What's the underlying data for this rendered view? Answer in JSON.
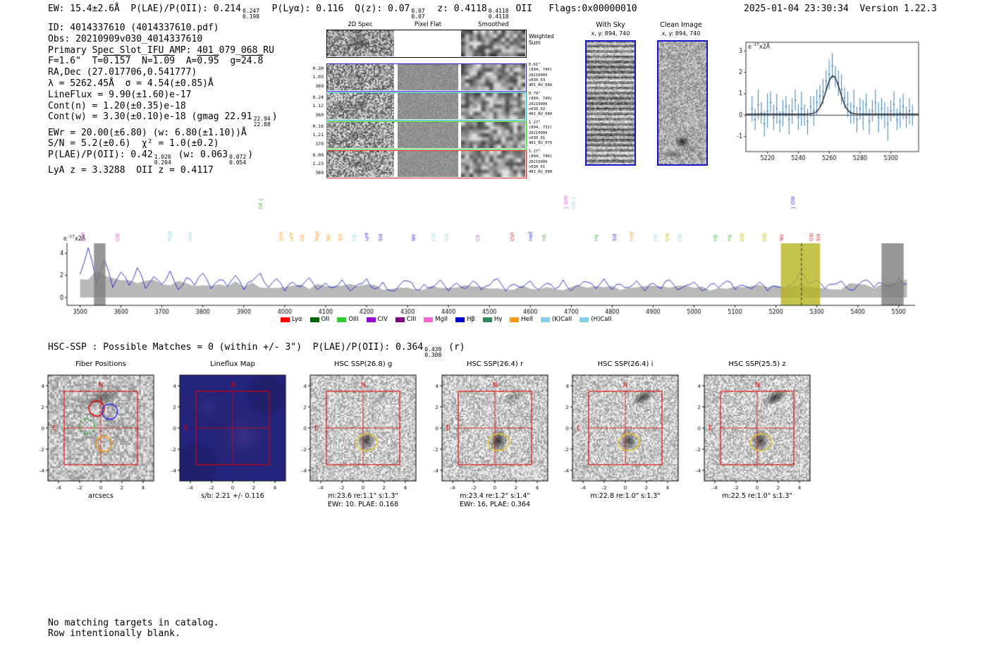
{
  "colors": {
    "frame_blue": "#1515c8",
    "annotate_red": "#dd0000",
    "yellow_band": "#b5b520",
    "gray_fill": "#b9b9b9",
    "spectrum_line": "#2222cc",
    "point_blue": "#3a7ebf",
    "fiber_red": "#dd0000",
    "fiber_blue": "#2222dd",
    "fiber_green": "#22aa22",
    "fiber_orange": "#ff9913",
    "source_ellipse": "#e8c832",
    "map_blue": "#24247e"
  },
  "header": {
    "segments": [
      {
        "t": "EW: 15.4±2.6Å  P(LAE)/P(OII): 0.214"
      },
      {
        "up": "0.247",
        "dn": "0.198"
      },
      {
        "t": "  P(Lyα): 0.116  Q(z): 0.07"
      },
      {
        "up": "0.07",
        "dn": "0.07"
      },
      {
        "t": "  z: 0.4118"
      },
      {
        "up": "0.4118",
        "dn": "0.4118"
      },
      {
        "t": " OII   Flags:0x00000010"
      }
    ],
    "timestamp": "2025-01-04 23:30:34  Version 1.22.3"
  },
  "info": {
    "lines": [
      [
        {
          "t": "ID: 4014337610 (4014337610.pdf)"
        }
      ],
      [
        {
          "t": "Obs: 20210909v030_4014337610"
        }
      ],
      [
        {
          "t": "Primary Spec_Slot_IFU_AMP: 401_079_068_RU"
        }
      ],
      [
        {
          "t": "F=1.6\"  T="
        },
        {
          "t": "0.157",
          "ov": 1
        },
        {
          "t": "  N="
        },
        {
          "t": "1.09",
          "ov": 1
        },
        {
          "t": "  A="
        },
        {
          "t": "0.95",
          "ov": 1
        },
        {
          "t": "  g="
        },
        {
          "t": "24.8",
          "ov": 1
        }
      ],
      [
        {
          "t": "RA,Dec (27.017706,0.541777)"
        }
      ],
      [
        {
          "t": "λ = 5262.45Å  σ = 4.54(±0.85)Å"
        }
      ],
      [
        {
          "t": "LineFlux = 9.90(±1.60)e-17"
        }
      ],
      [
        {
          "t": "Cont(n) = 1.20(±0.35)e-18"
        }
      ],
      [
        {
          "t": "Cont(w) = 3.30(±0.10)e-18 (gmag 22.91"
        },
        {
          "up": "22.94",
          "dn": "22.88"
        },
        {
          "t": ")"
        }
      ],
      [
        {
          "t": "EWr = 20.00(±6.80) (w: 6.80(±1.10))Å"
        }
      ],
      [
        {
          "t": "S/N = 5.2(±0.6)  χ² = 1.0(±0.2)"
        }
      ],
      [
        {
          "t": "P(LAE)/P(OII): 0.42"
        },
        {
          "up": "1.026",
          "dn": "0.204"
        },
        {
          "t": " (w: 0.063"
        },
        {
          "up": "0.072",
          "dn": "0.054"
        },
        {
          "t": ")"
        }
      ],
      [
        {
          "t": "LyA z = 3.3288  OII z = 0.4117"
        }
      ]
    ]
  },
  "spec2d": {
    "col_titles": [
      "2D Spec",
      "Pixel Flat",
      "Smoothed"
    ],
    "sum_right_label": [
      "Weighted",
      "Sum"
    ],
    "rows": [
      {
        "color": "#2020c8",
        "left": [
          "0.30",
          "1.03",
          "369"
        ],
        "right": [
          "0.61\"",
          "(894, 740)",
          "20210909",
          "v030_03",
          "401_RU_080"
        ]
      },
      {
        "color": "#20a8a8",
        "left": [
          "0.24",
          "1.12",
          "369"
        ],
        "right": [
          "0.79\"",
          "(894, 740)",
          "20210909",
          "v030_02",
          "401_RU_080"
        ]
      },
      {
        "color": "#28c828",
        "left": [
          "0.16",
          "1.21",
          "370"
        ],
        "right": [
          "1.27\"",
          "(894, 731)",
          "20210909",
          "v030_01",
          "401_RU_079"
        ]
      },
      {
        "color": "#e02020",
        "left": [
          "0.09",
          "1.23",
          "369"
        ],
        "right": [
          "1.27\"",
          "(894, 740)",
          "20210909",
          "v030_01",
          "401_RU_080"
        ]
      }
    ]
  },
  "sky_panels": [
    {
      "title": "With Sky",
      "coords": "x, y: 894, 740"
    },
    {
      "title": "Clean Image",
      "coords": "x, y: 894, 740"
    }
  ],
  "hsc_line": {
    "segments": [
      {
        "t": "HSC-SSP : Possible Matches = 0 (within +/- 3\")  P(LAE)/P(OII): 0.364"
      },
      {
        "up": "0.439",
        "dn": "0.308"
      },
      {
        "t": " (r)"
      }
    ]
  },
  "cutouts": {
    "axis_ticks": [
      -4,
      -2,
      0,
      2,
      4
    ],
    "compass": {
      "north": "N",
      "east": "E"
    },
    "panels": [
      {
        "title": "Fiber Positions",
        "xlabel": "arcsecs",
        "captions": []
      },
      {
        "title": "Lineflux Map",
        "captions": [
          "s/b: 2.21 +/- 0.116"
        ]
      },
      {
        "title": "HSC SSP(26.8) g",
        "captions": [
          "m:23.6 re:1.1\" s:1.3\"",
          "EWr: 10. PLAE: 0.168"
        ]
      },
      {
        "title": "HSC SSP(26.4) r",
        "captions": [
          "m:23.4 re:1.2\" s:1.4\"",
          "EWr: 16, PLAE: 0.364"
        ]
      },
      {
        "title": "HSC SSP(26.4) i",
        "captions": [
          "m:22.8 re:1.0\" s:1.3\""
        ]
      },
      {
        "title": "HSC SSP(25.5) z",
        "captions": [
          "m:22.5 re:1.0\" s:1.3\""
        ]
      }
    ]
  },
  "footer": {
    "lines": [
      "No matching targets in catalog.",
      "Row intentionally blank."
    ]
  },
  "chart_data": [
    {
      "type": "scatter",
      "name": "line_fit",
      "ylabel": {
        "prefix": "e",
        "sup": "-17",
        "suffix": "x2Å"
      },
      "xlim": [
        5206,
        5318
      ],
      "ylim": [
        -1.7,
        3.4
      ],
      "xticks": [
        5220,
        5240,
        5260,
        5280,
        5300
      ],
      "yticks": [
        -1,
        0,
        1,
        2,
        3
      ],
      "x_start": 5210,
      "x_step": 2,
      "y": [
        0.3,
        -0.2,
        0.5,
        0.1,
        -0.4,
        0.2,
        0.6,
        -0.1,
        0.3,
        -0.3,
        0.1,
        0.4,
        -0.2,
        0.2,
        0.7,
        -0.1,
        0.3,
        0.0,
        -0.3,
        0.4,
        0.2,
        0.6,
        0.9,
        1.1,
        1.6,
        1.9,
        2.3,
        1.8,
        1.5,
        1.2,
        0.8,
        0.5,
        0.1,
        0.4,
        -0.2,
        0.3,
        0.0,
        0.5,
        -0.3,
        0.2,
        0.6,
        -0.1,
        0.3,
        0.0,
        -0.4,
        0.2,
        0.5,
        -0.2,
        0.1,
        0.4,
        -0.1,
        0.2,
        0.0
      ],
      "yerr": [
        0.6,
        0.5,
        0.7,
        0.5,
        0.6,
        0.8,
        0.5,
        0.6,
        0.7,
        0.5,
        0.6,
        0.5,
        0.7,
        0.6,
        0.5,
        0.6,
        0.8,
        0.5,
        0.6,
        0.5,
        0.7,
        0.6,
        0.5,
        0.6,
        0.5,
        0.7,
        0.6,
        0.5,
        0.6,
        0.7,
        0.5,
        0.6,
        0.5,
        0.8,
        0.6,
        0.5,
        0.7,
        0.5,
        0.6,
        0.5,
        0.6,
        0.7,
        0.5,
        0.6,
        0.8,
        0.5,
        0.6,
        0.5,
        0.7,
        0.6,
        0.5,
        0.6,
        0.5
      ],
      "fit": {
        "center": 5262.45,
        "sigma": 4.54,
        "amplitude": 1.78,
        "baseline": 0.05
      }
    },
    {
      "type": "line",
      "name": "full_spectrum",
      "ylabel": {
        "prefix": "e",
        "sup": "-17",
        "suffix": "x2Å"
      },
      "xlim": [
        3468,
        5540
      ],
      "ylim": [
        -0.7,
        4.9
      ],
      "xticks": [
        3500,
        3600,
        3700,
        3800,
        3900,
        4000,
        4100,
        4200,
        4300,
        4400,
        4500,
        4600,
        4700,
        4800,
        4900,
        5000,
        5100,
        5200,
        5300,
        5400,
        5500
      ],
      "yticks": [
        0,
        2,
        4
      ],
      "x_start": 3500,
      "x_step": 20,
      "y": [
        2.1,
        4.5,
        1.3,
        3.4,
        0.9,
        2.3,
        1.1,
        2.7,
        0.8,
        1.9,
        1.2,
        2.4,
        0.7,
        1.8,
        1.1,
        2.2,
        0.8,
        1.6,
        1.0,
        2.0,
        0.7,
        1.5,
        2.2,
        0.9,
        1.7,
        0.6,
        1.4,
        1.0,
        1.8,
        0.7,
        1.3,
        0.9,
        1.6,
        0.6,
        1.2,
        1.7,
        0.8,
        1.4,
        0.6,
        1.1,
        1.5,
        0.7,
        1.2,
        0.9,
        1.6,
        0.6,
        1.3,
        0.8,
        1.5,
        0.7,
        1.1,
        1.7,
        0.6,
        1.2,
        0.9,
        1.5,
        0.7,
        1.3,
        0.8,
        1.6,
        0.6,
        1.1,
        1.4,
        0.8,
        1.7,
        0.7,
        1.2,
        0.9,
        1.5,
        0.6,
        1.3,
        0.8,
        1.6,
        0.7,
        1.1,
        1.4,
        0.6,
        1.2,
        0.9,
        1.5,
        0.7,
        1.1,
        0.8,
        1.4,
        0.6,
        1.0,
        0.8,
        1.2,
        2.4,
        1.3,
        1.6,
        0.8,
        1.2,
        1.5,
        0.7,
        1.1,
        1.6,
        0.9,
        1.3,
        1.0,
        1.7,
        1.2
      ],
      "noise_envelope": {
        "x": [
          3500,
          3560,
          3650,
          3800,
          4100,
          4500,
          5000,
          5250,
          5400,
          5520
        ],
        "y": [
          2.3,
          1.8,
          1.5,
          1.2,
          1.0,
          0.9,
          0.85,
          0.95,
          1.05,
          1.3
        ]
      },
      "highlight_band": {
        "x0": 5212,
        "x1": 5308,
        "line_x": 5262.45
      },
      "masked_bands": [
        [
          3534,
          3562
        ],
        [
          5458,
          5512
        ]
      ],
      "emission_labels": [
        {
          "t": "OVI",
          "x": 3507,
          "c": "#cc44cc"
        },
        {
          "t": "CIII",
          "x": 3592,
          "c": "#cc44cc"
        },
        {
          "t": "MgII",
          "x": 3718,
          "c": "#8fd0e8"
        },
        {
          "t": "SiIV",
          "x": 3768,
          "c": "#8fd0e8"
        },
        {
          "t": "OII {",
          "x": 3940,
          "c": "#2db52d",
          "h": 1
        },
        {
          "t": "SiIV",
          "x": 3990,
          "c": "#ff9913"
        },
        {
          "t": "Lyα",
          "x": 4014,
          "c": "#ff9913"
        },
        {
          "t": "OII",
          "x": 4042,
          "c": "#ff9913"
        },
        {
          "t": "MgII",
          "x": 4078,
          "c": "#ff9913"
        },
        {
          "t": "NV",
          "x": 4106,
          "c": "#ff9913"
        },
        {
          "t": "SiII",
          "x": 4136,
          "c": "#ff9913"
        },
        {
          "t": "OII",
          "x": 4170,
          "c": "#8fd0e8"
        },
        {
          "t": "Lyα",
          "x": 4200,
          "c": "#2929ff"
        },
        {
          "t": "SiII",
          "x": 4234,
          "c": "#2929ff"
        },
        {
          "t": "NV",
          "x": 4314,
          "c": "#2929ff"
        },
        {
          "t": "CIV",
          "x": 4362,
          "c": "#8fd0e8"
        },
        {
          "t": "SiII",
          "x": 4396,
          "c": "#8fd0e8"
        },
        {
          "t": "CII",
          "x": 4472,
          "c": "#cc44cc"
        },
        {
          "t": "OVI",
          "x": 4556,
          "c": "#e02020"
        },
        {
          "t": "HeII",
          "x": 4600,
          "c": "#2929ff"
        },
        {
          "t": "Hδ",
          "x": 4634,
          "c": "#2db52d"
        },
        {
          "t": "} SiIV",
          "x": 4686,
          "c": "#cc44cc",
          "h": 1
        },
        {
          "t": "OIII {",
          "x": 4706,
          "c": "#8fd0e8",
          "h": 1
        },
        {
          "t": "Hγ",
          "x": 4760,
          "c": "#2db52d"
        },
        {
          "t": "SiII",
          "x": 4806,
          "c": "#2929ff"
        },
        {
          "t": "HeII",
          "x": 4846,
          "c": "#ff9913"
        },
        {
          "t": "OII",
          "x": 4906,
          "c": "#8fd0e8"
        },
        {
          "t": "CIV",
          "x": 4934,
          "c": "#b5b500"
        },
        {
          "t": "CIII",
          "x": 4966,
          "c": "#8fd0e8"
        },
        {
          "t": "Hδ",
          "x": 5052,
          "c": "#2db52d"
        },
        {
          "t": "Hγ",
          "x": 5086,
          "c": "#2db52d"
        },
        {
          "t": "OIII",
          "x": 5118,
          "c": "#b5b500"
        },
        {
          "t": "OIII",
          "x": 5172,
          "c": "#b5b500"
        },
        {
          "t": "NV",
          "x": 5214,
          "c": "#e02020"
        },
        {
          "t": "} OIII",
          "x": 5242,
          "c": "#2929ff",
          "h": 1
        },
        {
          "t": "OIII",
          "x": 5286,
          "c": "#e02020"
        },
        {
          "t": "SiII",
          "x": 5304,
          "c": "#e02020"
        }
      ],
      "legend": [
        {
          "label": "Lyα",
          "color": "#ff0000"
        },
        {
          "label": "OII",
          "color": "#006400"
        },
        {
          "label": "OIII",
          "color": "#32cd32"
        },
        {
          "label": "CIV",
          "color": "#9400d3"
        },
        {
          "label": "CIII",
          "color": "#800080"
        },
        {
          "label": "MgII",
          "color": "#ff66cc"
        },
        {
          "label": "Hβ",
          "color": "#0000cd"
        },
        {
          "label": "Hγ",
          "color": "#2e8b57"
        },
        {
          "label": "HeII",
          "color": "#ff9913"
        },
        {
          "label": "(K)CaII",
          "color": "#87ceeb"
        },
        {
          "label": "(H)CaII",
          "color": "#87ceeb"
        }
      ]
    }
  ]
}
